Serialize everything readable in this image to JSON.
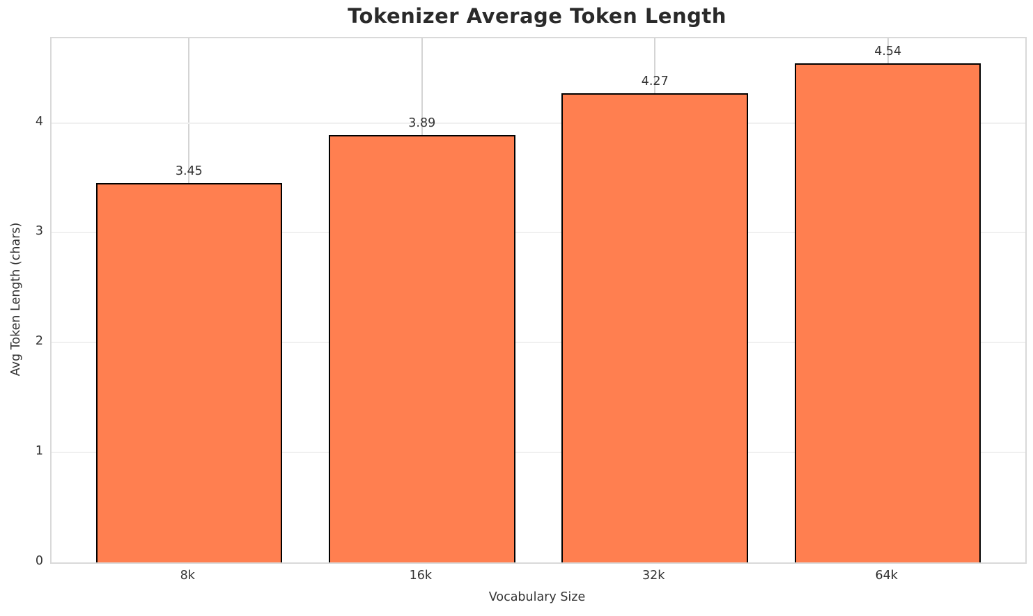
{
  "chart_data": {
    "type": "bar",
    "title": "Tokenizer Average Token Length",
    "xlabel": "Vocabulary Size",
    "ylabel": "Avg Token Length (chars)",
    "categories": [
      "8k",
      "16k",
      "32k",
      "64k"
    ],
    "values": [
      3.45,
      3.89,
      4.27,
      4.54
    ],
    "value_labels": [
      "3.45",
      "3.89",
      "4.27",
      "4.54"
    ],
    "yticks": [
      0,
      1,
      2,
      3,
      4
    ],
    "ytick_labels": [
      "0",
      "1",
      "2",
      "3",
      "4"
    ],
    "ylim": [
      0,
      4.77
    ],
    "grid": true,
    "legend": "none",
    "bar_color": "#FF7F50",
    "bar_edge_color": "#000000"
  }
}
